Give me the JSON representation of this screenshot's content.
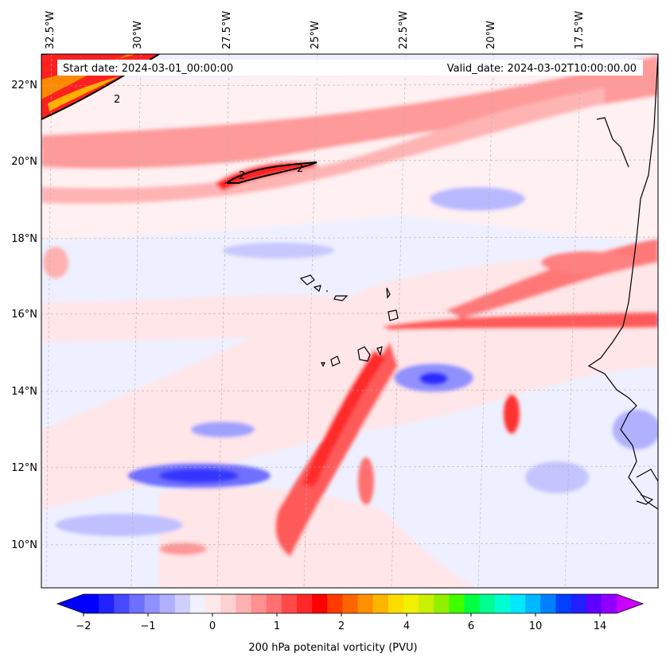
{
  "map": {
    "start_date_label": "Start date: 2024-03-01_00:00:00",
    "valid_date_label": "Valid_date: 2024-03-02T10:00:00.00",
    "lon_labels": [
      "32.5°W",
      "30°W",
      "27.5°W",
      "25°W",
      "22.5°W",
      "20°W",
      "17.5°W"
    ],
    "lat_labels": [
      "22°N",
      "20°N",
      "18°N",
      "16°N",
      "14°N",
      "12°N",
      "10°N"
    ],
    "contour_labels": [
      "2",
      "2",
      "2"
    ],
    "colors": {
      "land_outline": "#000000",
      "background_field": "#eef0ff"
    }
  },
  "colorbar": {
    "title": "200 hPa potenital vorticity (PVU)",
    "tick_labels": [
      "−2",
      "−1",
      "0",
      "1",
      "2",
      "4",
      "6",
      "10",
      "14"
    ],
    "colors": [
      "#0000ff",
      "#2222ff",
      "#4848ff",
      "#6e6eff",
      "#9090ff",
      "#b0b0ff",
      "#d0d0ff",
      "#f0f0ff",
      "#ffe8e8",
      "#ffd0d0",
      "#ffb0b0",
      "#ff9090",
      "#ff7070",
      "#ff4848",
      "#ff2828",
      "#ff0000",
      "#ff3a00",
      "#ff6600",
      "#ff9000",
      "#ffb400",
      "#ffdc00",
      "#f0f000",
      "#c8f000",
      "#90f000",
      "#40ff00",
      "#00ff40",
      "#00ff90",
      "#00ffd0",
      "#00e8ff",
      "#00b8ff",
      "#0080ff",
      "#0040ff",
      "#2020ff",
      "#6000ff",
      "#9000ff"
    ],
    "extend_low_color": "#0000ff",
    "extend_high_color": "#cc00ff"
  }
}
